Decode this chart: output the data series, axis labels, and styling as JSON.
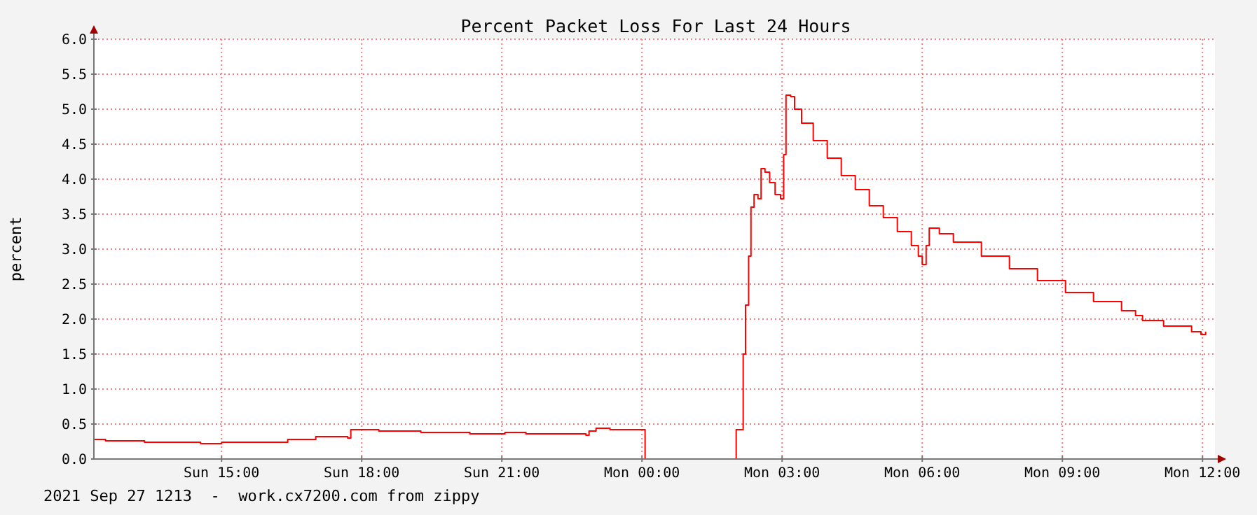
{
  "chart_data": {
    "type": "step",
    "title": "Percent Packet Loss For Last 24 Hours",
    "ylabel": "percent",
    "annotations": [
      "2021 Sep 27 1213  -  work.cx7200.com from zippy"
    ],
    "x": [
      "2021-09-26T12:16",
      "2021-09-26T12:31",
      "2021-09-26T13:21",
      "2021-09-26T14:33",
      "2021-09-26T15:00",
      "2021-09-26T16:25",
      "2021-09-26T17:01",
      "2021-09-26T17:42",
      "2021-09-26T17:46",
      "2021-09-26T18:22",
      "2021-09-26T19:16",
      "2021-09-26T20:19",
      "2021-09-26T21:04",
      "2021-09-26T21:31",
      "2021-09-26T22:48",
      "2021-09-26T22:52",
      "2021-09-26T23:01",
      "2021-09-26T23:19",
      "2021-09-27T00:04",
      "2021-09-27T02:01",
      "2021-09-27T02:10",
      "2021-09-27T02:13",
      "2021-09-27T02:17",
      "2021-09-27T02:20",
      "2021-09-27T02:24",
      "2021-09-27T02:29",
      "2021-09-27T02:33",
      "2021-09-27T02:38",
      "2021-09-27T02:44",
      "2021-09-27T02:51",
      "2021-09-27T02:58",
      "2021-09-27T03:02",
      "2021-09-27T03:05",
      "2021-09-27T03:11",
      "2021-09-27T03:16",
      "2021-09-27T03:25",
      "2021-09-27T03:40",
      "2021-09-27T03:58",
      "2021-09-27T04:16",
      "2021-09-27T04:34",
      "2021-09-27T04:52",
      "2021-09-27T05:10",
      "2021-09-27T05:28",
      "2021-09-27T05:46",
      "2021-09-27T05:55",
      "2021-09-27T06:00",
      "2021-09-27T06:05",
      "2021-09-27T06:09",
      "2021-09-27T06:22",
      "2021-09-27T06:40",
      "2021-09-27T07:16",
      "2021-09-27T07:52",
      "2021-09-27T08:28",
      "2021-09-27T09:04",
      "2021-09-27T09:40",
      "2021-09-27T10:16",
      "2021-09-27T10:34",
      "2021-09-27T10:43",
      "2021-09-27T11:10",
      "2021-09-27T11:46",
      "2021-09-27T11:58",
      "2021-09-27T12:04"
    ],
    "series": [
      {
        "color": "#ff0000",
        "values": [
          0.28,
          0.26,
          0.24,
          0.22,
          0.24,
          0.28,
          0.32,
          0.3,
          0.42,
          0.4,
          0.38,
          0.36,
          0.38,
          0.36,
          0.34,
          0.4,
          0.44,
          0.42,
          0.0,
          0.42,
          1.5,
          2.2,
          2.9,
          3.6,
          3.78,
          3.72,
          4.15,
          4.1,
          3.95,
          3.78,
          3.72,
          4.35,
          5.2,
          5.18,
          5.0,
          4.8,
          4.55,
          4.3,
          4.05,
          3.85,
          3.62,
          3.45,
          3.25,
          3.05,
          2.9,
          2.78,
          3.05,
          3.3,
          3.22,
          3.1,
          2.9,
          2.72,
          2.55,
          2.38,
          2.25,
          2.12,
          2.05,
          1.98,
          1.9,
          1.82,
          1.78,
          1.82
        ]
      }
    ],
    "xlim": [
      "2021-09-26T12:16",
      "2021-09-27T12:16"
    ],
    "xticks": [
      {
        "value": "2021-09-26T15:00",
        "label": "Sun 15:00"
      },
      {
        "value": "2021-09-26T18:00",
        "label": "Sun 18:00"
      },
      {
        "value": "2021-09-26T21:00",
        "label": "Sun 21:00"
      },
      {
        "value": "2021-09-27T00:00",
        "label": "Mon 00:00"
      },
      {
        "value": "2021-09-27T03:00",
        "label": "Mon 03:00"
      },
      {
        "value": "2021-09-27T06:00",
        "label": "Mon 06:00"
      },
      {
        "value": "2021-09-27T09:00",
        "label": "Mon 09:00"
      },
      {
        "value": "2021-09-27T12:00",
        "label": "Mon 12:00"
      }
    ],
    "ylim": [
      0,
      6
    ],
    "yticks": [
      {
        "value": 0,
        "label": "0.0"
      },
      {
        "value": 0.5,
        "label": "0.5"
      },
      {
        "value": 1,
        "label": "1.0"
      },
      {
        "value": 1.5,
        "label": "1.5"
      },
      {
        "value": 2,
        "label": "2.0"
      },
      {
        "value": 2.5,
        "label": "2.5"
      },
      {
        "value": 3,
        "label": "3.0"
      },
      {
        "value": 3.5,
        "label": "3.5"
      },
      {
        "value": 4,
        "label": "4.0"
      },
      {
        "value": 4.5,
        "label": "4.5"
      },
      {
        "value": 5,
        "label": "5.0"
      },
      {
        "value": 5.5,
        "label": "5.5"
      },
      {
        "value": 6,
        "label": "6.0"
      }
    ],
    "grid": true
  }
}
